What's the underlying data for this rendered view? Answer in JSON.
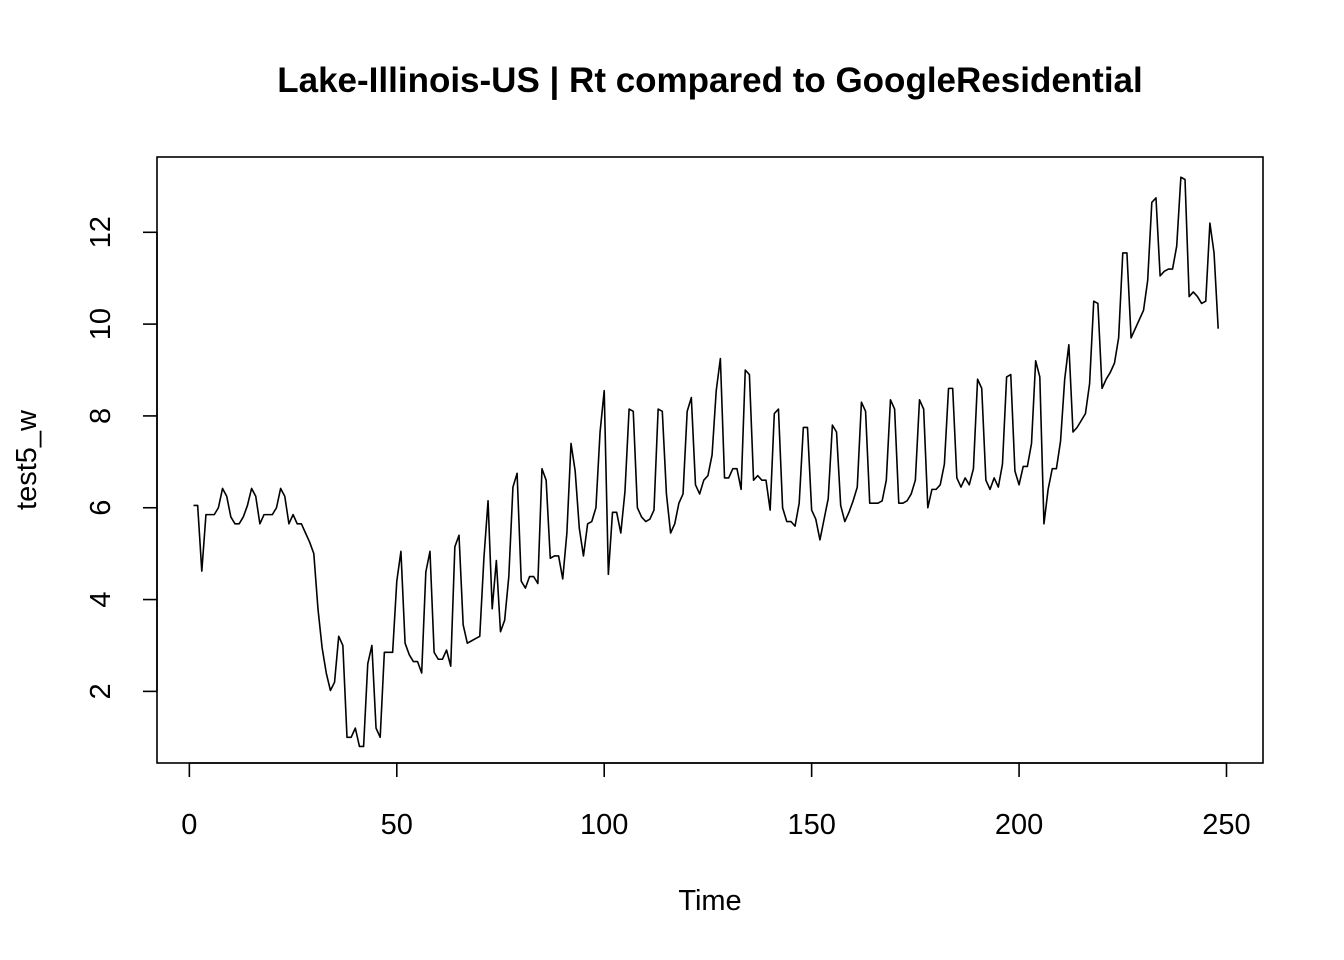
{
  "chart_data": {
    "type": "line",
    "title": "Lake-Illinois-US | Rt compared to GoogleResidential",
    "xlabel": "Time",
    "ylabel": "test5_w",
    "xlim": [
      -7.8,
      258.8
    ],
    "ylim": [
      0.44,
      13.64
    ],
    "xticks": [
      0,
      50,
      100,
      150,
      200,
      250
    ],
    "xtick_labels": [
      "0",
      "50",
      "100",
      "150",
      "200",
      "250"
    ],
    "yticks": [
      2,
      4,
      6,
      8,
      10,
      12
    ],
    "ytick_labels": [
      "2",
      "4",
      "6",
      "8",
      "10",
      "12"
    ],
    "grid": false,
    "line_color": "#000000",
    "series": [
      {
        "x_start": 1,
        "x_step": 1,
        "values": [
          6.05,
          6.05,
          4.62,
          5.85,
          5.85,
          5.85,
          6.0,
          6.42,
          6.25,
          5.8,
          5.65,
          5.65,
          5.8,
          6.05,
          6.42,
          6.25,
          5.65,
          5.85,
          5.85,
          5.85,
          6.0,
          6.42,
          6.25,
          5.65,
          5.85,
          5.65,
          5.65,
          5.45,
          5.25,
          5.0,
          3.8,
          2.95,
          2.4,
          2.02,
          2.2,
          3.2,
          3.0,
          1.0,
          1.0,
          1.2,
          0.8,
          0.8,
          2.6,
          3.0,
          1.2,
          1.0,
          2.85,
          2.85,
          2.85,
          4.4,
          5.05,
          3.05,
          2.8,
          2.65,
          2.65,
          2.4,
          4.6,
          5.05,
          2.85,
          2.7,
          2.7,
          2.9,
          2.55,
          5.15,
          5.4,
          3.45,
          3.05,
          3.1,
          3.15,
          3.2,
          4.9,
          6.15,
          3.8,
          4.85,
          3.3,
          3.55,
          4.5,
          6.45,
          6.75,
          4.4,
          4.25,
          4.5,
          4.5,
          4.35,
          6.85,
          6.6,
          4.9,
          4.95,
          4.95,
          4.45,
          5.45,
          7.4,
          6.8,
          5.55,
          4.95,
          5.65,
          5.7,
          6.0,
          7.65,
          8.55,
          4.55,
          5.9,
          5.9,
          5.45,
          6.35,
          8.15,
          8.1,
          6.0,
          5.8,
          5.7,
          5.75,
          5.95,
          8.15,
          8.1,
          6.3,
          5.45,
          5.65,
          6.1,
          6.3,
          8.1,
          8.4,
          6.5,
          6.3,
          6.6,
          6.7,
          7.15,
          8.55,
          9.25,
          6.65,
          6.65,
          6.85,
          6.85,
          6.4,
          9.0,
          8.9,
          6.6,
          6.7,
          6.6,
          6.6,
          5.95,
          8.05,
          8.15,
          6.0,
          5.7,
          5.7,
          5.6,
          6.1,
          7.75,
          7.75,
          5.95,
          5.75,
          5.3,
          5.75,
          6.2,
          7.8,
          7.65,
          6.05,
          5.7,
          5.9,
          6.15,
          6.45,
          8.3,
          8.1,
          6.1,
          6.1,
          6.1,
          6.15,
          6.6,
          8.35,
          8.15,
          6.1,
          6.1,
          6.15,
          6.3,
          6.6,
          8.35,
          8.15,
          6.0,
          6.4,
          6.4,
          6.5,
          6.95,
          8.6,
          8.6,
          6.65,
          6.45,
          6.65,
          6.5,
          6.85,
          8.8,
          8.6,
          6.6,
          6.4,
          6.65,
          6.45,
          6.95,
          8.85,
          8.9,
          6.8,
          6.5,
          6.9,
          6.9,
          7.4,
          9.2,
          8.85,
          5.65,
          6.4,
          6.85,
          6.85,
          7.45,
          8.8,
          9.55,
          7.65,
          7.75,
          7.9,
          8.05,
          8.7,
          10.5,
          10.45,
          8.6,
          8.8,
          8.95,
          9.15,
          9.7,
          11.55,
          11.55,
          9.7,
          9.9,
          10.1,
          10.3,
          10.95,
          12.65,
          12.75,
          11.05,
          11.15,
          11.2,
          11.2,
          11.7,
          13.2,
          13.15,
          10.6,
          10.7,
          10.6,
          10.45,
          10.5,
          12.2,
          11.55,
          9.9
        ]
      }
    ]
  }
}
